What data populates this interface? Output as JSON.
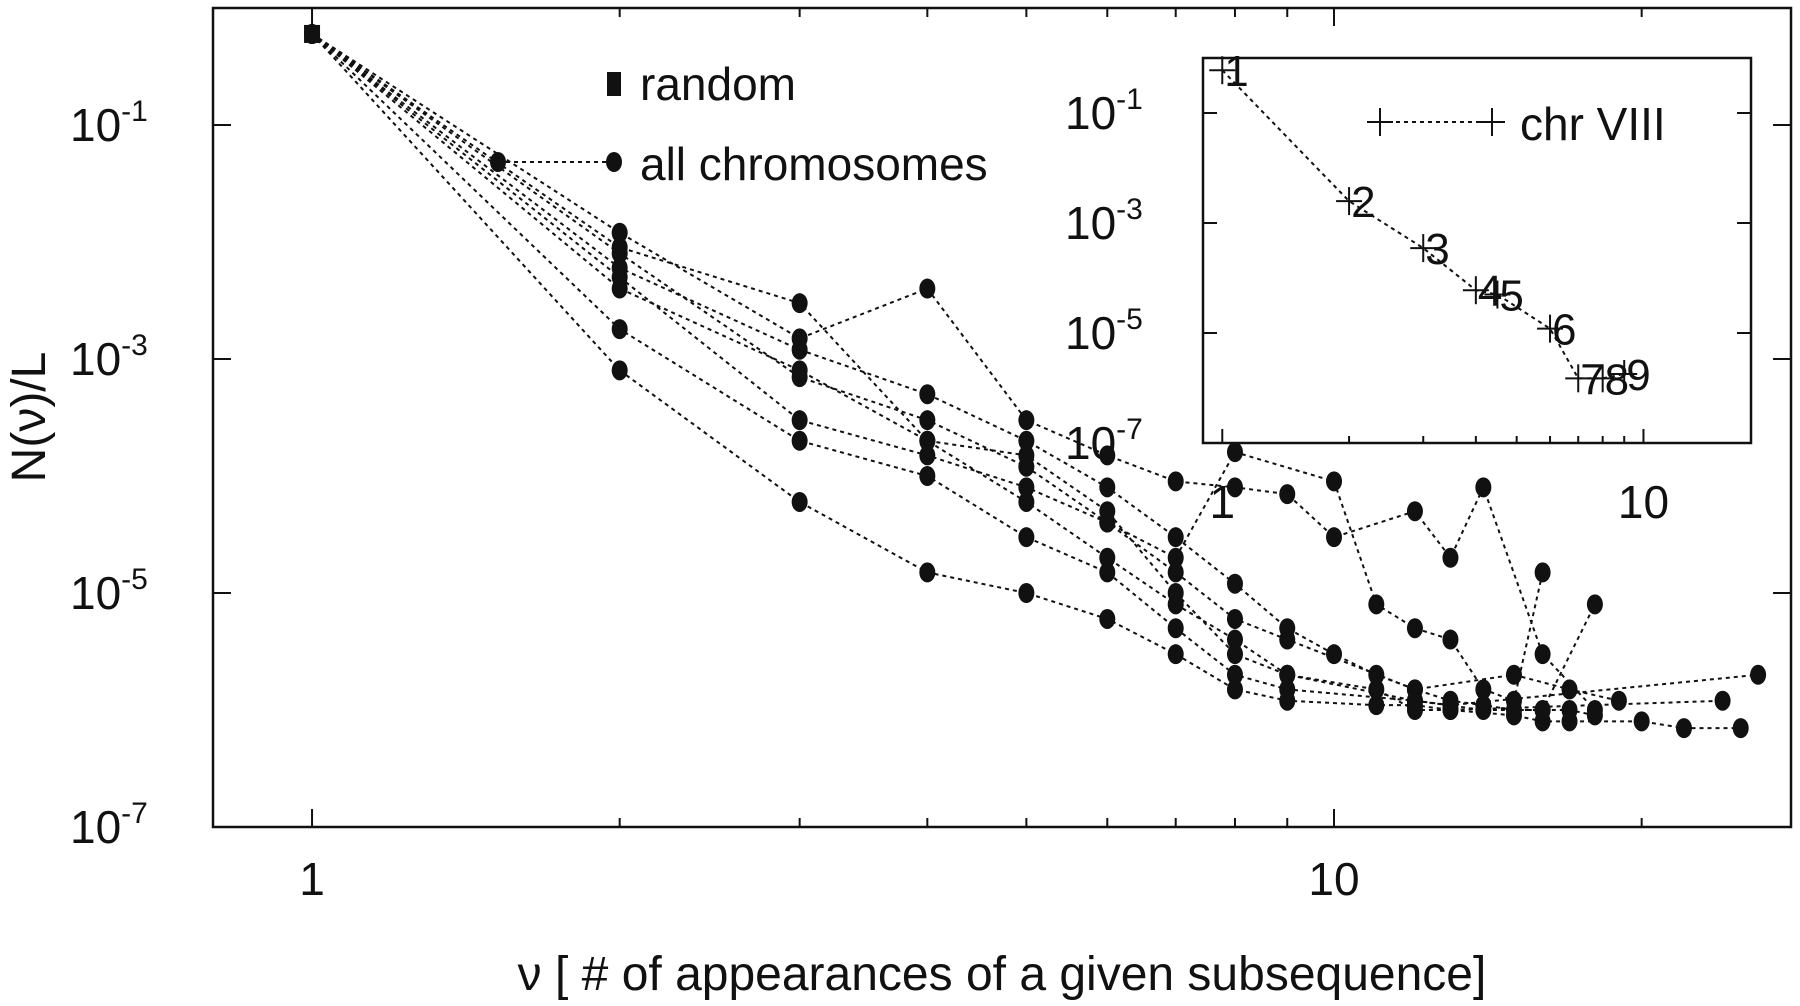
{
  "chart_data": [
    {
      "type": "scatter",
      "title": "",
      "xlabel": "ν [ # of appearances of a given subsequence]",
      "ylabel": "N(ν)/L",
      "xscale": "log",
      "yscale": "log",
      "xlim": [
        0.8,
        28
      ],
      "ylim": [
        1e-07,
        1.0
      ],
      "x_ticks": [
        {
          "value": 1,
          "label": "1"
        },
        {
          "value": 10,
          "label": "10"
        }
      ],
      "y_ticks": [
        {
          "value": 0.1,
          "base": "10",
          "exp": "-1"
        },
        {
          "value": 0.001,
          "base": "10",
          "exp": "-3"
        },
        {
          "value": 1e-05,
          "base": "10",
          "exp": "-5"
        },
        {
          "value": 1e-07,
          "base": "10",
          "exp": "-7"
        }
      ],
      "grid": false,
      "legend_position": "top-center",
      "legend": [
        {
          "label": "random",
          "marker": "square"
        },
        {
          "label": "all chromosomes",
          "marker": "circle"
        }
      ],
      "series": [
        {
          "marker": "square",
          "x": [
            1
          ],
          "y": [
            0.6
          ]
        },
        {
          "marker": "circle",
          "x": [
            1,
            2,
            3,
            4,
            5,
            6,
            7,
            8,
            9,
            10,
            11,
            12,
            13,
            14,
            15,
            16,
            17,
            18
          ],
          "y": [
            0.6,
            0.006,
            0.0012,
            0.0005,
            0.0002,
            8e-05,
            3e-05,
            1.2e-05,
            5e-06,
            3e-06,
            2e-06,
            1.5e-06,
            1.2e-06,
            1.1e-06,
            1e-06,
            1e-06,
            1e-06,
            9e-07
          ]
        },
        {
          "marker": "circle",
          "x": [
            1,
            2,
            3,
            4,
            5,
            6,
            7,
            8,
            9,
            11,
            12,
            13,
            15,
            16,
            17,
            20,
            22,
            25
          ],
          "y": [
            0.6,
            0.009,
            0.003,
            0.0002,
            6e-05,
            2e-05,
            8e-06,
            4e-06,
            2e-06,
            1.5e-06,
            1e-06,
            1e-06,
            9e-07,
            8e-07,
            8e-07,
            8e-07,
            7e-07,
            7e-07
          ]
        },
        {
          "marker": "circle",
          "x": [
            1,
            2,
            3,
            4,
            5,
            6,
            7,
            8,
            9,
            10,
            12,
            13,
            14,
            16,
            18
          ],
          "y": [
            0.6,
            0.012,
            0.0015,
            0.004,
            0.0003,
            0.00015,
            9e-05,
            8e-05,
            7e-05,
            3e-05,
            5e-05,
            2e-05,
            8e-05,
            3e-06,
            1e-06
          ]
        },
        {
          "marker": "circle",
          "x": [
            1,
            2,
            3,
            4,
            5,
            6,
            7,
            8,
            10,
            11,
            12,
            13,
            14,
            15,
            16
          ],
          "y": [
            0.6,
            0.008,
            0.0007,
            0.0003,
            0.00012,
            4e-05,
            2e-05,
            0.00016,
            9e-05,
            8e-06,
            5e-06,
            4e-06,
            1.5e-06,
            1.2e-06,
            1.5e-05
          ]
        },
        {
          "marker": "circle",
          "x": [
            1,
            2,
            3,
            4,
            5,
            6,
            7,
            8,
            9,
            12,
            15,
            17,
            19
          ],
          "y": [
            0.6,
            0.005,
            0.0003,
            0.00015,
            8e-05,
            4e-05,
            1.5e-05,
            6e-06,
            4e-06,
            1.5e-06,
            2e-06,
            1.5e-06,
            1.2e-06
          ]
        },
        {
          "marker": "circle",
          "x": [
            1,
            2,
            3,
            4,
            5,
            6,
            7,
            8,
            9,
            12,
            14,
            16,
            18
          ],
          "y": [
            0.6,
            0.0018,
            0.0002,
            0.0001,
            3e-05,
            1.5e-05,
            5e-06,
            2e-06,
            1.5e-06,
            1.2e-06,
            1e-06,
            1e-06,
            8e-06
          ]
        },
        {
          "marker": "circle",
          "x": [
            1,
            2,
            3,
            4,
            5,
            6,
            7,
            8,
            9,
            11,
            12,
            13,
            24
          ],
          "y": [
            0.6,
            0.0008,
            6e-05,
            1.5e-05,
            1e-05,
            6e-06,
            3e-06,
            1.5e-06,
            1.2e-06,
            1.1e-06,
            1.1e-06,
            1e-06,
            1.2e-06
          ]
        },
        {
          "marker": "circle",
          "x": [
            1,
            2,
            3,
            4,
            5,
            6,
            7,
            8,
            9,
            12,
            13,
            26
          ],
          "y": [
            0.6,
            0.004,
            0.0008,
            0.0002,
            0.00015,
            5e-05,
            1e-05,
            3e-06,
            2e-06,
            1.2e-06,
            1.1e-06,
            2e-06
          ]
        }
      ]
    },
    {
      "type": "scatter",
      "title": "",
      "xscale": "log",
      "yscale": "log",
      "xlim": [
        0.9,
        18
      ],
      "ylim": [
        1e-07,
        1.0
      ],
      "x_ticks": [
        {
          "value": 1,
          "label": "1"
        },
        {
          "value": 10,
          "label": "10"
        }
      ],
      "y_ticks": [
        {
          "value": 0.1,
          "base": "10",
          "exp": "-1"
        },
        {
          "value": 0.001,
          "base": "10",
          "exp": "-3"
        },
        {
          "value": 1e-05,
          "base": "10",
          "exp": "-5"
        },
        {
          "value": 1e-07,
          "base": "10",
          "exp": "-7"
        }
      ],
      "legend_position": "top-right",
      "legend": [
        {
          "label": "chr VIII",
          "marker": "plus"
        }
      ],
      "series": [
        {
          "name": "chr VIII",
          "marker": "plus",
          "x": [
            1,
            2,
            3,
            4,
            4.5,
            6,
            7,
            8,
            9
          ],
          "y": [
            0.6,
            0.0025,
            0.00035,
            6e-05,
            5e-05,
            1.2e-05,
            1.5e-06,
            1.5e-06,
            1.8e-06
          ],
          "point_labels": [
            "1",
            "2",
            "3",
            "4",
            "5",
            "6",
            "7",
            "8",
            "9"
          ]
        }
      ]
    }
  ]
}
